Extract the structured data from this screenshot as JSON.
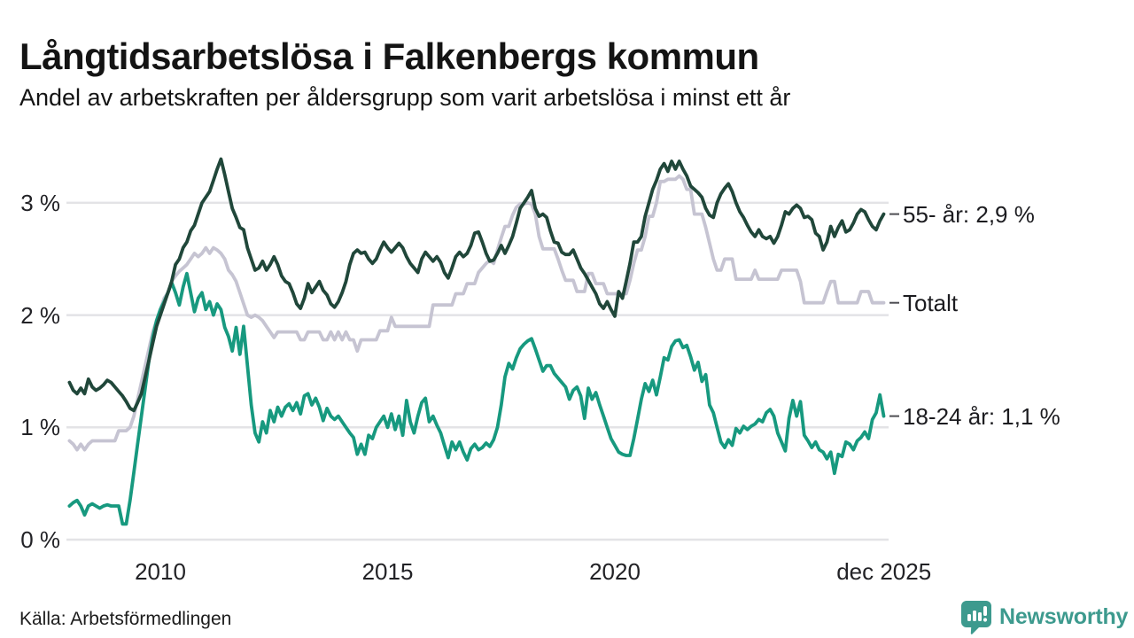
{
  "header": {
    "title": "Långtidsarbetslösa i Falkenbergs kommun",
    "subtitle": "Andel av arbetskraften per åldersgrupp som varit arbetslösa i minst ett år"
  },
  "footer": {
    "source": "Källa: Arbetsförmedlingen",
    "brand_name": "Newsworthy",
    "brand_icon": "newsworthy-chart-bubble-icon"
  },
  "colors": {
    "series_55": "#20473a",
    "series_totalt": "#c6c4d2",
    "series_18_24": "#17997f",
    "gridline": "#e3e3e6",
    "end_tick": "#4d4d52",
    "text": "#1a1a1a",
    "brand_teal": "#3d9a8e"
  },
  "chart_data": {
    "type": "line",
    "title": "Långtidsarbetslösa i Falkenbergs kommun",
    "subtitle": "Andel av arbetskraften per åldersgrupp som varit arbetslösa i minst ett år",
    "x_start": 2008.0,
    "x_step": 0.08333,
    "x_ticks": [
      {
        "value": 2010.0,
        "label": "2010"
      },
      {
        "value": 2015.0,
        "label": "2015"
      },
      {
        "value": 2020.0,
        "label": "2020"
      },
      {
        "value": 2025.92,
        "label": "dec 2025"
      }
    ],
    "y_ticks": [
      {
        "value": 0,
        "label": "0 %"
      },
      {
        "value": 1,
        "label": "1 %"
      },
      {
        "value": 2,
        "label": "2 %"
      },
      {
        "value": 3,
        "label": "3 %"
      }
    ],
    "ylim": [
      0,
      3.55
    ],
    "grid": true,
    "legend_position": "end-of-line-right",
    "series": [
      {
        "name": "55- år",
        "end_label": "55- år: 2,9 %",
        "end_value_label": "2,9 %",
        "color": "#20473a",
        "values": [
          1.4,
          1.33,
          1.3,
          1.35,
          1.3,
          1.43,
          1.36,
          1.33,
          1.35,
          1.38,
          1.42,
          1.4,
          1.36,
          1.32,
          1.28,
          1.23,
          1.17,
          1.15,
          1.22,
          1.3,
          1.45,
          1.6,
          1.75,
          1.9,
          2.0,
          2.1,
          2.2,
          2.3,
          2.45,
          2.5,
          2.6,
          2.65,
          2.75,
          2.8,
          2.9,
          3.0,
          3.05,
          3.1,
          3.2,
          3.3,
          3.39,
          3.25,
          3.1,
          2.95,
          2.87,
          2.78,
          2.76,
          2.6,
          2.5,
          2.4,
          2.42,
          2.48,
          2.4,
          2.45,
          2.52,
          2.45,
          2.35,
          2.3,
          2.28,
          2.2,
          2.1,
          2.06,
          2.15,
          2.28,
          2.2,
          2.25,
          2.3,
          2.22,
          2.18,
          2.1,
          2.07,
          2.12,
          2.2,
          2.3,
          2.45,
          2.55,
          2.58,
          2.55,
          2.56,
          2.5,
          2.46,
          2.5,
          2.58,
          2.65,
          2.6,
          2.56,
          2.6,
          2.64,
          2.6,
          2.52,
          2.46,
          2.42,
          2.38,
          2.5,
          2.56,
          2.52,
          2.48,
          2.52,
          2.47,
          2.38,
          2.33,
          2.42,
          2.52,
          2.56,
          2.52,
          2.55,
          2.62,
          2.73,
          2.74,
          2.65,
          2.55,
          2.48,
          2.49,
          2.55,
          2.62,
          2.55,
          2.62,
          2.7,
          2.82,
          2.95,
          3.0,
          3.05,
          3.11,
          2.95,
          2.88,
          2.9,
          2.87,
          2.75,
          2.65,
          2.64,
          2.56,
          2.54,
          2.54,
          2.58,
          2.5,
          2.42,
          2.37,
          2.31,
          2.25,
          2.19,
          2.1,
          2.06,
          2.12,
          2.05,
          1.99,
          2.21,
          2.15,
          2.3,
          2.46,
          2.65,
          2.65,
          2.7,
          2.88,
          3.0,
          3.12,
          3.2,
          3.3,
          3.35,
          3.28,
          3.37,
          3.3,
          3.37,
          3.3,
          3.24,
          3.15,
          3.12,
          3.09,
          3.05,
          2.95,
          2.89,
          2.87,
          3.0,
          3.08,
          3.13,
          3.17,
          3.1,
          3.0,
          2.92,
          2.87,
          2.8,
          2.74,
          2.7,
          2.76,
          2.7,
          2.68,
          2.7,
          2.64,
          2.7,
          2.8,
          2.92,
          2.9,
          2.95,
          2.98,
          2.95,
          2.87,
          2.88,
          2.85,
          2.73,
          2.7,
          2.58,
          2.65,
          2.79,
          2.7,
          2.78,
          2.84,
          2.74,
          2.76,
          2.82,
          2.9,
          2.94,
          2.92,
          2.85,
          2.79,
          2.76,
          2.84,
          2.9
        ]
      },
      {
        "name": "Totalt",
        "end_label": "Totalt",
        "end_value_label": "",
        "color": "#c6c4d2",
        "values": [
          0.88,
          0.85,
          0.8,
          0.85,
          0.8,
          0.85,
          0.88,
          0.88,
          0.88,
          0.88,
          0.88,
          0.88,
          0.88,
          0.97,
          0.97,
          0.97,
          1.0,
          1.1,
          1.25,
          1.4,
          1.55,
          1.7,
          1.85,
          1.95,
          2.05,
          2.15,
          2.2,
          2.3,
          2.35,
          2.39,
          2.42,
          2.45,
          2.5,
          2.55,
          2.52,
          2.55,
          2.6,
          2.55,
          2.6,
          2.58,
          2.55,
          2.5,
          2.4,
          2.36,
          2.3,
          2.2,
          2.1,
          2.0,
          1.98,
          2.0,
          1.98,
          1.95,
          1.9,
          1.85,
          1.8,
          1.85,
          1.85,
          1.85,
          1.85,
          1.85,
          1.85,
          1.78,
          1.78,
          1.85,
          1.85,
          1.85,
          1.85,
          1.78,
          1.78,
          1.85,
          1.78,
          1.85,
          1.78,
          1.85,
          1.78,
          1.78,
          1.68,
          1.78,
          1.78,
          1.78,
          1.78,
          1.78,
          1.86,
          1.86,
          1.86,
          1.98,
          1.9,
          1.9,
          1.9,
          1.9,
          1.9,
          1.9,
          1.9,
          1.9,
          1.9,
          1.9,
          2.09,
          2.09,
          2.09,
          2.09,
          2.09,
          2.09,
          2.19,
          2.19,
          2.19,
          2.28,
          2.28,
          2.28,
          2.38,
          2.42,
          2.46,
          2.49,
          2.46,
          2.58,
          2.69,
          2.79,
          2.79,
          2.89,
          2.96,
          2.99,
          2.99,
          3.0,
          2.99,
          2.9,
          2.7,
          2.59,
          2.59,
          2.59,
          2.59,
          2.5,
          2.4,
          2.31,
          2.31,
          2.31,
          2.21,
          2.21,
          2.21,
          2.37,
          2.37,
          2.28,
          2.28,
          2.28,
          2.19,
          2.19,
          2.19,
          2.19,
          2.19,
          2.19,
          2.31,
          2.46,
          2.58,
          2.58,
          2.7,
          2.88,
          2.88,
          3.0,
          3.19,
          3.19,
          3.21,
          3.21,
          3.21,
          3.24,
          3.21,
          3.12,
          3.12,
          2.9,
          2.9,
          2.9,
          2.78,
          2.64,
          2.5,
          2.4,
          2.4,
          2.5,
          2.5,
          2.5,
          2.32,
          2.32,
          2.32,
          2.32,
          2.32,
          2.4,
          2.32,
          2.32,
          2.32,
          2.32,
          2.32,
          2.32,
          2.4,
          2.4,
          2.4,
          2.4,
          2.4,
          2.3,
          2.11,
          2.11,
          2.11,
          2.11,
          2.11,
          2.11,
          2.21,
          2.3,
          2.3,
          2.11,
          2.11,
          2.11,
          2.11,
          2.11,
          2.11,
          2.21,
          2.21,
          2.21,
          2.11,
          2.11,
          2.11,
          2.11
        ]
      },
      {
        "name": "18-24 år",
        "end_label": "18-24 år: 1,1 %",
        "end_value_label": "1,1 %",
        "color": "#17997f",
        "values": [
          0.3,
          0.33,
          0.35,
          0.3,
          0.22,
          0.3,
          0.32,
          0.3,
          0.28,
          0.3,
          0.31,
          0.3,
          0.3,
          0.3,
          0.14,
          0.14,
          0.35,
          0.6,
          0.85,
          1.1,
          1.35,
          1.6,
          1.8,
          1.95,
          2.05,
          2.12,
          2.2,
          2.29,
          2.2,
          2.09,
          2.25,
          2.37,
          2.2,
          2.03,
          2.15,
          2.2,
          2.05,
          2.12,
          2.0,
          2.1,
          2.05,
          1.89,
          1.81,
          1.68,
          1.89,
          1.65,
          1.9,
          1.55,
          1.2,
          0.95,
          0.87,
          1.05,
          0.95,
          1.15,
          1.05,
          1.18,
          1.1,
          1.18,
          1.21,
          1.15,
          1.22,
          1.12,
          1.28,
          1.3,
          1.2,
          1.26,
          1.18,
          1.06,
          1.17,
          1.1,
          1.07,
          1.1,
          1.05,
          1.0,
          0.95,
          0.91,
          0.76,
          0.85,
          0.76,
          0.93,
          0.9,
          1.0,
          1.05,
          1.1,
          1.0,
          1.12,
          0.98,
          1.1,
          0.93,
          1.24,
          1.05,
          0.95,
          1.1,
          1.22,
          1.26,
          1.05,
          1.1,
          1.02,
          0.95,
          0.84,
          0.73,
          0.87,
          0.8,
          0.87,
          0.78,
          0.71,
          0.81,
          0.85,
          0.8,
          0.82,
          0.86,
          0.83,
          0.89,
          1.0,
          1.2,
          1.45,
          1.57,
          1.52,
          1.62,
          1.7,
          1.74,
          1.77,
          1.79,
          1.7,
          1.6,
          1.5,
          1.55,
          1.55,
          1.48,
          1.44,
          1.4,
          1.36,
          1.25,
          1.33,
          1.36,
          1.28,
          1.08,
          1.35,
          1.25,
          1.31,
          1.2,
          1.1,
          1.0,
          0.9,
          0.84,
          0.78,
          0.76,
          0.75,
          0.75,
          0.9,
          1.07,
          1.25,
          1.39,
          1.32,
          1.42,
          1.29,
          1.45,
          1.62,
          1.6,
          1.72,
          1.77,
          1.78,
          1.71,
          1.73,
          1.63,
          1.51,
          1.58,
          1.41,
          1.47,
          1.2,
          1.13,
          1.0,
          0.87,
          0.82,
          0.89,
          0.84,
          0.99,
          0.95,
          1.01,
          0.98,
          1.01,
          1.03,
          1.07,
          1.05,
          1.13,
          1.16,
          1.1,
          0.95,
          0.87,
          0.79,
          1.08,
          1.24,
          1.1,
          1.23,
          0.93,
          0.88,
          0.82,
          0.87,
          0.8,
          0.78,
          0.72,
          0.78,
          0.59,
          0.76,
          0.74,
          0.87,
          0.85,
          0.8,
          0.88,
          0.91,
          0.96,
          0.9,
          1.07,
          1.13,
          1.29,
          1.1
        ]
      }
    ]
  }
}
